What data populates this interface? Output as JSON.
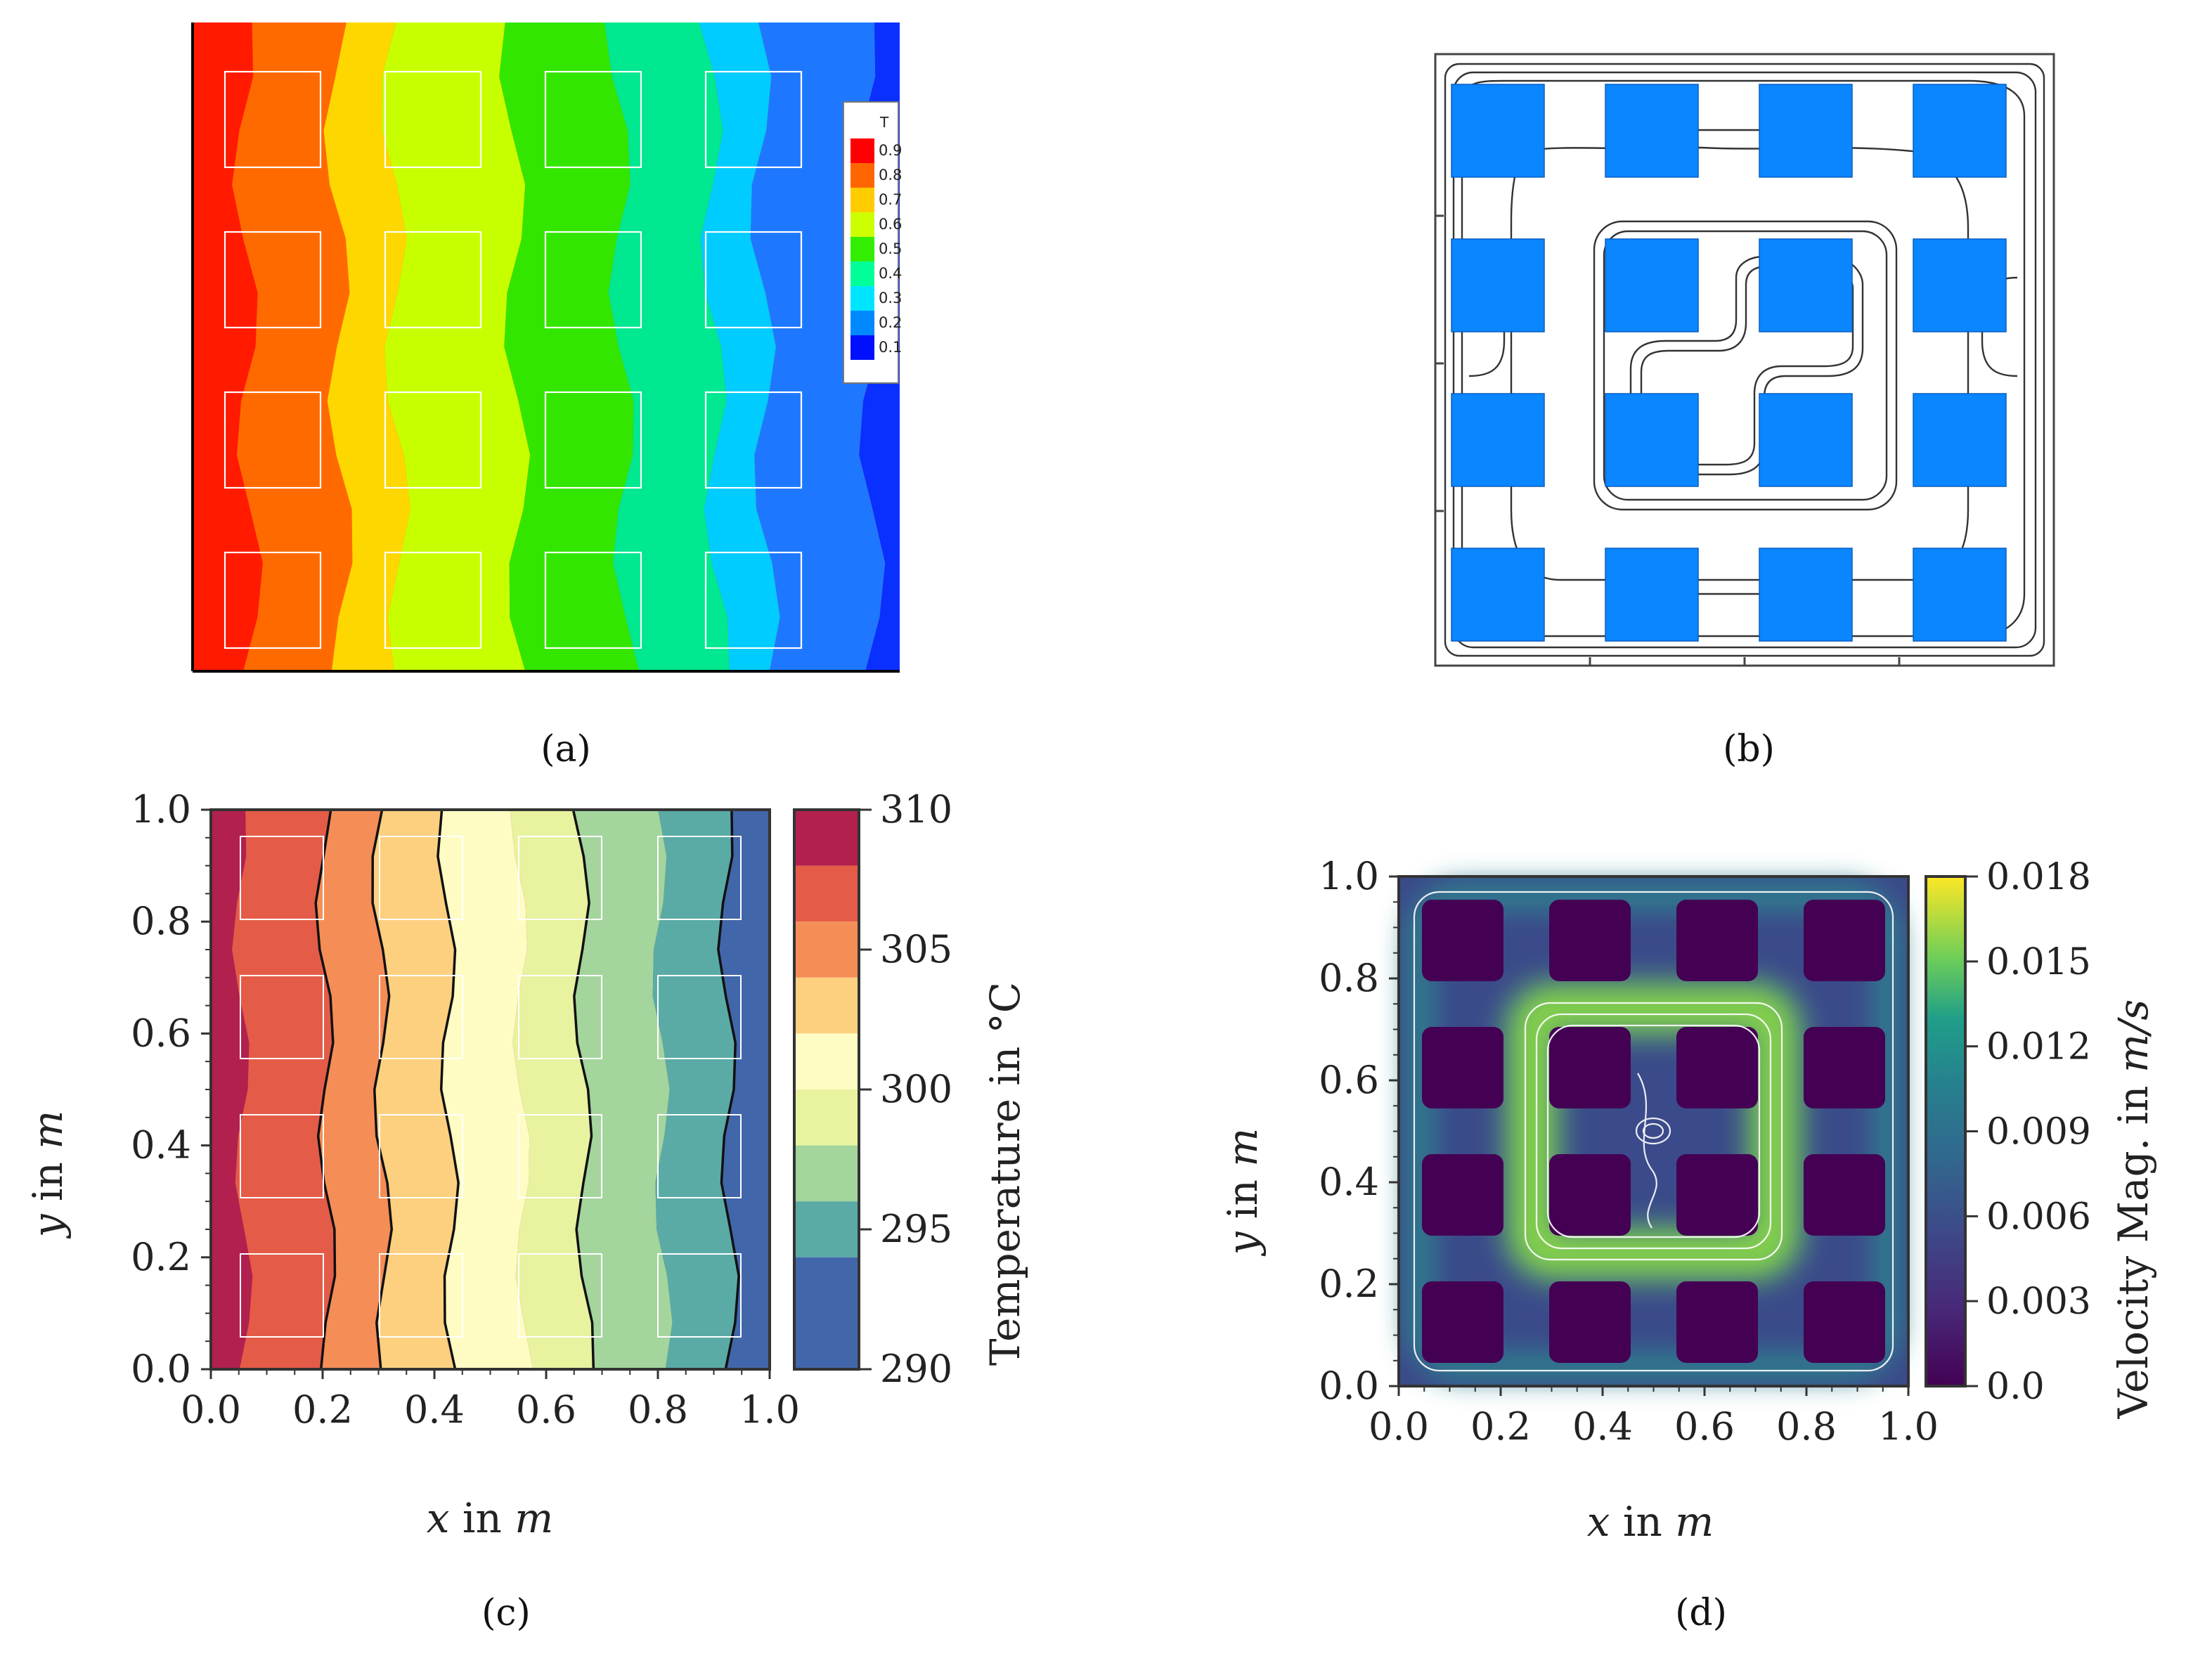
{
  "captions": {
    "a": "(a)",
    "b": "(b)",
    "c": "(c)",
    "d": "(d)"
  },
  "chart_data": [
    {
      "id": "a",
      "type": "heatmap",
      "description_kind": "temperature contour (nondimensional)",
      "legend": {
        "title": "T",
        "ticks": [
          "0.9",
          "0.8",
          "0.7",
          "0.6",
          "0.5",
          "0.4",
          "0.3",
          "0.2",
          "0.1"
        ],
        "colors": [
          "#ff0000",
          "#ff6600",
          "#ffcc00",
          "#ccff00",
          "#33ee00",
          "#00ff99",
          "#00e5ff",
          "#0088ff",
          "#0010ff"
        ],
        "placement": "right"
      },
      "bands": [
        {
          "color": "#ff1a00",
          "x_range": [
            0.0,
            0.07
          ]
        },
        {
          "color": "#ff6a00",
          "x_range": [
            0.07,
            0.2
          ]
        },
        {
          "color": "#ffd700",
          "x_range": [
            0.2,
            0.28
          ]
        },
        {
          "color": "#c8ff00",
          "x_range": [
            0.28,
            0.45
          ]
        },
        {
          "color": "#33e600",
          "x_range": [
            0.45,
            0.6
          ]
        },
        {
          "color": "#00e890",
          "x_range": [
            0.6,
            0.73
          ]
        },
        {
          "color": "#00ccff",
          "x_range": [
            0.73,
            0.8
          ]
        },
        {
          "color": "#1e78ff",
          "x_range": [
            0.8,
            0.95
          ]
        },
        {
          "color": "#0a30ff",
          "x_range": [
            0.95,
            1.0
          ]
        }
      ]
    },
    {
      "id": "b",
      "type": "diagram",
      "description_kind": "streamlines around 4x4 blocks",
      "block_color": "#0a86ff",
      "grid": [
        4,
        4
      ]
    },
    {
      "id": "c",
      "type": "heatmap",
      "xlabel": "x in m",
      "ylabel": "y in m",
      "xlim": [
        0.0,
        1.0
      ],
      "ylim": [
        0.0,
        1.0
      ],
      "xticks": [
        "0.0",
        "0.2",
        "0.4",
        "0.6",
        "0.8",
        "1.0"
      ],
      "yticks": [
        "0.0",
        "0.2",
        "0.4",
        "0.6",
        "0.8",
        "1.0"
      ],
      "colorbar": {
        "label": "Temperature in °C",
        "range": [
          290,
          310
        ],
        "ticks": [
          "310",
          "305",
          "300",
          "295",
          "290"
        ],
        "levels": [
          {
            "from": 308,
            "to": 310,
            "color": "#b2204d"
          },
          {
            "from": 306,
            "to": 308,
            "color": "#e45c48"
          },
          {
            "from": 304,
            "to": 306,
            "color": "#f58d57"
          },
          {
            "from": 302,
            "to": 304,
            "color": "#fdd080"
          },
          {
            "from": 300,
            "to": 302,
            "color": "#fefcc3"
          },
          {
            "from": 298,
            "to": 300,
            "color": "#e8f29f"
          },
          {
            "from": 296,
            "to": 298,
            "color": "#a3d59c"
          },
          {
            "from": 294,
            "to": 296,
            "color": "#5aaba6"
          },
          {
            "from": 290,
            "to": 294,
            "color": "#4266aa"
          }
        ]
      },
      "bands": [
        {
          "color": "#b2204d",
          "x_range": [
            0.0,
            0.05
          ]
        },
        {
          "color": "#e45c48",
          "x_range": [
            0.05,
            0.2
          ]
        },
        {
          "color": "#f58d57",
          "x_range": [
            0.2,
            0.3
          ]
        },
        {
          "color": "#fdd080",
          "x_range": [
            0.3,
            0.42
          ]
        },
        {
          "color": "#fefcc3",
          "x_range": [
            0.42,
            0.55
          ]
        },
        {
          "color": "#e8f29f",
          "x_range": [
            0.55,
            0.66
          ]
        },
        {
          "color": "#a3d59c",
          "x_range": [
            0.66,
            0.8
          ]
        },
        {
          "color": "#5aaba6",
          "x_range": [
            0.8,
            0.92
          ]
        },
        {
          "color": "#4266aa",
          "x_range": [
            0.92,
            1.0
          ]
        }
      ]
    },
    {
      "id": "d",
      "type": "heatmap",
      "xlabel": "x in m",
      "ylabel": "y in m",
      "xlim": [
        0.0,
        1.0
      ],
      "ylim": [
        0.0,
        1.0
      ],
      "xticks": [
        "0.0",
        "0.2",
        "0.4",
        "0.6",
        "0.8",
        "1.0"
      ],
      "yticks": [
        "0.0",
        "0.2",
        "0.4",
        "0.6",
        "0.8",
        "1.0"
      ],
      "colorbar": {
        "label": "Velocity Mag. in m/s",
        "range": [
          0.0,
          0.018
        ],
        "ticks": [
          "0.018",
          "0.015",
          "0.012",
          "0.009",
          "0.006",
          "0.003",
          "0.0"
        ],
        "colormap": "viridis"
      }
    }
  ]
}
